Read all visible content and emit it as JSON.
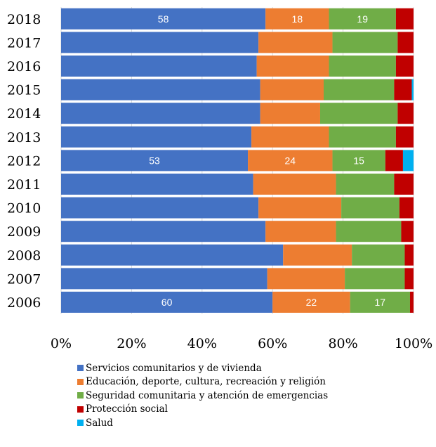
{
  "chart_data": {
    "type": "bar",
    "orientation": "horizontal",
    "stacked": true,
    "percent": true,
    "categories": [
      "2018",
      "2017",
      "2016",
      "2015",
      "2014",
      "2013",
      "2012",
      "2011",
      "2010",
      "2009",
      "2008",
      "2007",
      "2006"
    ],
    "series": [
      {
        "name": "Servicios comunitarios y de vivienda",
        "color": "#4472C4",
        "values": [
          58,
          56,
          55.5,
          56.5,
          56.5,
          54,
          53,
          54.5,
          56,
          58,
          63,
          58.5,
          60
        ]
      },
      {
        "name": "Educación, deporte, cultura, recreación y religión",
        "color": "#ED7D31",
        "values": [
          18,
          21,
          20.5,
          18,
          17,
          22,
          24,
          23.5,
          23.5,
          20,
          19.5,
          22,
          22
        ]
      },
      {
        "name": "Seguridad comunitaria y atención de emergencias",
        "color": "#70AD47",
        "values": [
          19,
          18.5,
          19,
          20,
          22,
          19,
          15,
          16.5,
          16.5,
          18.5,
          15,
          17,
          17
        ]
      },
      {
        "name": "Protección social",
        "color": "#C00000",
        "values": [
          5,
          4.5,
          5,
          5,
          4.5,
          5,
          5,
          5.5,
          4,
          3.5,
          2.5,
          2.5,
          1
        ]
      },
      {
        "name": "Salud",
        "color": "#00B0F0",
        "values": [
          0,
          0,
          0,
          0.5,
          0,
          0,
          3,
          0,
          0,
          0,
          0,
          0,
          0
        ]
      }
    ],
    "data_labels": [
      {
        "category": "2018",
        "values": [
          "58",
          "18",
          "19"
        ]
      },
      {
        "category": "2012",
        "values": [
          "53",
          "24",
          "15"
        ]
      },
      {
        "category": "2006",
        "values": [
          "60",
          "22",
          "17"
        ]
      }
    ],
    "x_ticks": [
      "0%",
      "20%",
      "40%",
      "60%",
      "80%",
      "100%"
    ],
    "xlim": [
      0,
      100
    ],
    "grid": true,
    "legend_position": "bottom"
  }
}
